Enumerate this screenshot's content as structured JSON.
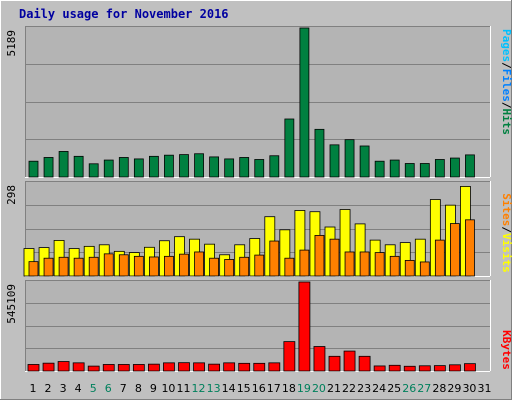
{
  "chart_data": {
    "type": "bar",
    "title": "Daily usage for November 2016",
    "categories": [
      "1",
      "2",
      "3",
      "4",
      "5",
      "6",
      "7",
      "8",
      "9",
      "10",
      "11",
      "12",
      "13",
      "14",
      "15",
      "16",
      "17",
      "18",
      "19",
      "20",
      "21",
      "22",
      "23",
      "24",
      "25",
      "26",
      "27",
      "28",
      "29",
      "30",
      "31"
    ],
    "weekend_days": [
      "5",
      "6",
      "12",
      "13",
      "19",
      "20",
      "26",
      "27"
    ],
    "colors": {
      "title": "#0000a0",
      "background": "#c0c0c0",
      "plot_background": "#b4b4b4",
      "grid": "#808080",
      "pages": "#00c0ff",
      "files": "#0080ff",
      "hits": "#008040",
      "sites": "#ff8000",
      "visits": "#ffff00",
      "kbytes": "#ff0000",
      "weekday_label": "#000000",
      "weekend_label": "#00805c"
    },
    "panels": [
      {
        "id": "hits",
        "scale_max": "5189",
        "ymax": 5189,
        "legend": [
          "Pages",
          "Files",
          "Hits"
        ],
        "series": [
          {
            "name": "Pages",
            "values": [
              0,
              0,
              0,
              0,
              0,
              0,
              0,
              0,
              0,
              0,
              0,
              0,
              0,
              0,
              0,
              0,
              0,
              0,
              0,
              0,
              0,
              0,
              0,
              0,
              0,
              0,
              0,
              0,
              0,
              0,
              0
            ]
          },
          {
            "name": "Files",
            "values": [
              0,
              0,
              0,
              0,
              0,
              0,
              0,
              0,
              0,
              0,
              0,
              0,
              0,
              0,
              0,
              0,
              0,
              0,
              0,
              0,
              0,
              0,
              0,
              0,
              0,
              0,
              0,
              0,
              0,
              0,
              0
            ]
          },
          {
            "name": "Hits",
            "values": [
              550,
              680,
              890,
              720,
              460,
              590,
              680,
              630,
              720,
              760,
              780,
              810,
              700,
              630,
              680,
              610,
              740,
              2020,
              5189,
              1660,
              1120,
              1300,
              1080,
              550,
              590,
              470,
              470,
              610,
              660,
              770,
              0
            ]
          }
        ]
      },
      {
        "id": "visits",
        "scale_max": "298",
        "ymax": 298,
        "legend": [
          "Sites",
          "Visits"
        ],
        "series": [
          {
            "name": "Visits",
            "values": [
              88,
              91,
              114,
              88,
              95,
              100,
              79,
              75,
              92,
              113,
              126,
              118,
              102,
              68,
              100,
              120,
              190,
              148,
              210,
              206,
              157,
              213,
              167,
              115,
              100,
              107,
              118,
              245,
              227,
              287,
              0
            ]
          },
          {
            "name": "Sites",
            "values": [
              46,
              57,
              60,
              57,
              60,
              71,
              68,
              63,
              61,
              63,
              70,
              77,
              57,
              53,
              60,
              67,
              112,
              57,
              83,
              130,
              118,
              77,
              77,
              75,
              63,
              50,
              45,
              115,
              168,
              180,
              0
            ]
          }
        ]
      },
      {
        "id": "kbytes",
        "scale_max": "545109",
        "ymax": 545109,
        "legend": [
          "KBytes"
        ],
        "series": [
          {
            "name": "KBytes",
            "values": [
              40000,
              48000,
              58000,
              50000,
              30000,
              40000,
              40000,
              40000,
              42000,
              50000,
              51000,
              50000,
              42000,
              50000,
              47000,
              47000,
              50000,
              180000,
              545109,
              150000,
              90000,
              122000,
              90000,
              31000,
              35000,
              29000,
              32000,
              33000,
              38000,
              45000,
              0
            ]
          }
        ]
      }
    ]
  }
}
